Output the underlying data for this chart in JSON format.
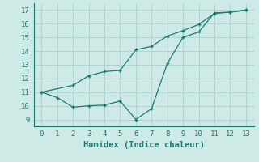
{
  "line1_x": [
    0,
    1,
    2,
    3,
    4,
    5,
    6,
    7,
    8,
    9,
    10,
    11,
    12,
    13
  ],
  "line1_y": [
    11.0,
    10.6,
    9.9,
    10.0,
    10.05,
    10.35,
    9.0,
    9.8,
    13.1,
    15.0,
    15.4,
    16.8,
    16.85,
    17.0
  ],
  "line2_x": [
    0,
    2,
    3,
    4,
    5,
    6,
    7,
    8,
    9,
    10,
    11,
    12,
    13
  ],
  "line2_y": [
    11.0,
    11.5,
    12.2,
    12.5,
    12.6,
    14.1,
    14.35,
    15.1,
    15.5,
    15.95,
    16.75,
    16.85,
    17.0
  ],
  "line_color": "#1a7a6e",
  "bg_color": "#ceeae6",
  "grid_color": "#b0d4cf",
  "xlabel": "Humidex (Indice chaleur)",
  "xlim": [
    -0.5,
    13.5
  ],
  "ylim": [
    8.5,
    17.5
  ],
  "yticks": [
    9,
    10,
    11,
    12,
    13,
    14,
    15,
    16,
    17
  ],
  "xticks": [
    0,
    1,
    2,
    3,
    4,
    5,
    6,
    7,
    8,
    9,
    10,
    11,
    12,
    13
  ],
  "tick_fontsize": 6.5,
  "xlabel_fontsize": 7.5
}
